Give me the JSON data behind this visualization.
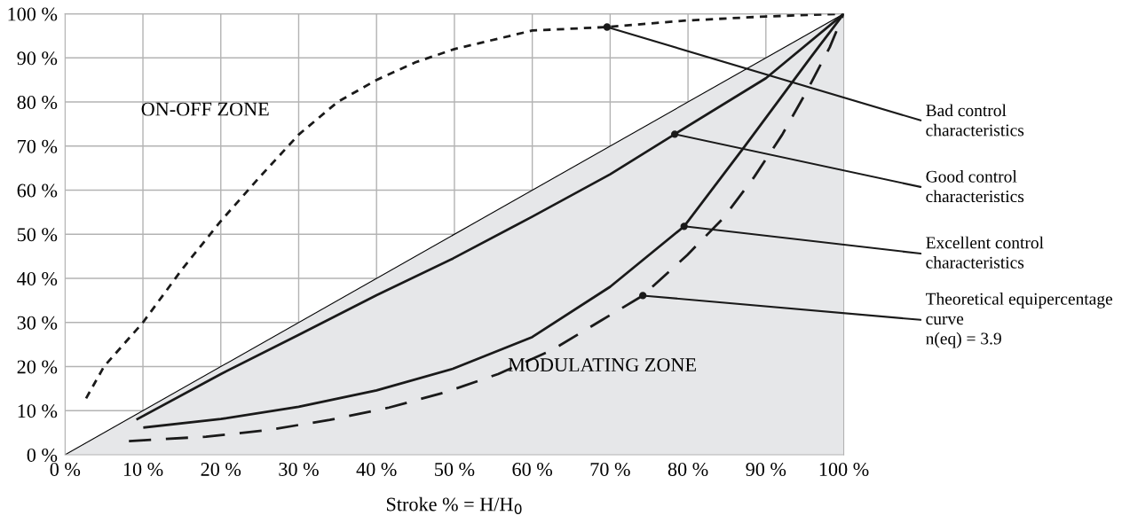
{
  "chart_data": {
    "type": "line",
    "xlabel": "Stroke % = H/H$_{0}$",
    "xlim": [
      0,
      100
    ],
    "ylim": [
      0,
      100
    ],
    "xticks": [
      {
        "value": 0,
        "label": "0 %"
      },
      {
        "value": 10,
        "label": "10 %"
      },
      {
        "value": 20,
        "label": "20 %"
      },
      {
        "value": 30,
        "label": "30 %"
      },
      {
        "value": 40,
        "label": "40 %"
      },
      {
        "value": 50,
        "label": "50 %"
      },
      {
        "value": 60,
        "label": "60 %"
      },
      {
        "value": 70,
        "label": "70 %"
      },
      {
        "value": 80,
        "label": "80 %"
      },
      {
        "value": 90,
        "label": "90 %"
      },
      {
        "value": 100,
        "label": "100 %"
      }
    ],
    "yticks": [
      {
        "value": 0,
        "label": "0 %"
      },
      {
        "value": 10,
        "label": "10 %"
      },
      {
        "value": 20,
        "label": "20 %"
      },
      {
        "value": 30,
        "label": "30 %"
      },
      {
        "value": 40,
        "label": "40 %"
      },
      {
        "value": 50,
        "label": "50 %"
      },
      {
        "value": 60,
        "label": "60 %"
      },
      {
        "value": 70,
        "label": "70 %"
      },
      {
        "value": 80,
        "label": "80 %"
      },
      {
        "value": 90,
        "label": "90 %"
      },
      {
        "value": 100,
        "label": "100 %"
      }
    ],
    "grid": true,
    "legend": false,
    "marker": "none",
    "series": [
      {
        "type": "area",
        "color": "#e6e7e9",
        "x": [
          0,
          100
        ],
        "values": [
          0,
          100
        ]
      },
      {
        "color": "#1a1a1a",
        "line_style": "dotted",
        "x": [
          2.7,
          5,
          10,
          15,
          20,
          25,
          30,
          35,
          40,
          45,
          50,
          60,
          69.6,
          80,
          90,
          100
        ],
        "values": [
          12.8,
          20,
          30,
          42,
          53,
          63,
          72.6,
          80,
          85,
          89,
          92,
          96.2,
          97,
          98.5,
          99.4,
          100
        ]
      },
      {
        "color": "#1a1a1a",
        "line_style": "solid",
        "x": [
          9.3,
          20,
          30,
          40,
          49.8,
          60,
          70,
          78.3,
          90,
          100
        ],
        "values": [
          8.1,
          18.3,
          27.2,
          36.2,
          44.5,
          54,
          63.6,
          72.7,
          85.4,
          100
        ]
      },
      {
        "color": "#1a1a1a",
        "line_style": "solid",
        "x": [
          10.2,
          20,
          30,
          40,
          49.8,
          60,
          70,
          79.5,
          87.3,
          91.5,
          95.7,
          100
        ],
        "values": [
          6.2,
          8.1,
          10.9,
          14.6,
          19.5,
          26.7,
          38.1,
          51.8,
          70,
          80,
          90,
          100
        ]
      },
      {
        "color": "#1a1a1a",
        "line_style": "dashed",
        "x": [
          8.2,
          18.1,
          26,
          34,
          41.6,
          48.9,
          55.6,
          62.5,
          68.8,
          74.2,
          79.9,
          84.5,
          88.5,
          92.1,
          95.2,
          98.2,
          100
        ],
        "values": [
          3.1,
          4.1,
          5.6,
          7.9,
          10.7,
          14.2,
          18.3,
          23.7,
          30.4,
          36.1,
          45.3,
          53.6,
          63,
          72.6,
          82.3,
          92.4,
          100
        ]
      }
    ],
    "annotations": [
      "ON-OFF ZONE",
      "MODULATING ZONE",
      {
        "text": "Bad control\ncharacteristics",
        "x": 69.6,
        "y": 97
      },
      {
        "text": "Good control\ncharacteristics",
        "x": 78.3,
        "y": 72.7
      },
      {
        "text": "Excellent control\ncharacteristics",
        "x": 79.5,
        "y": 51.8
      },
      {
        "text": "Theoretical equipercentage\ncurve\nn(eq) = 3.9",
        "x": 74.2,
        "y": 36.1
      }
    ]
  }
}
